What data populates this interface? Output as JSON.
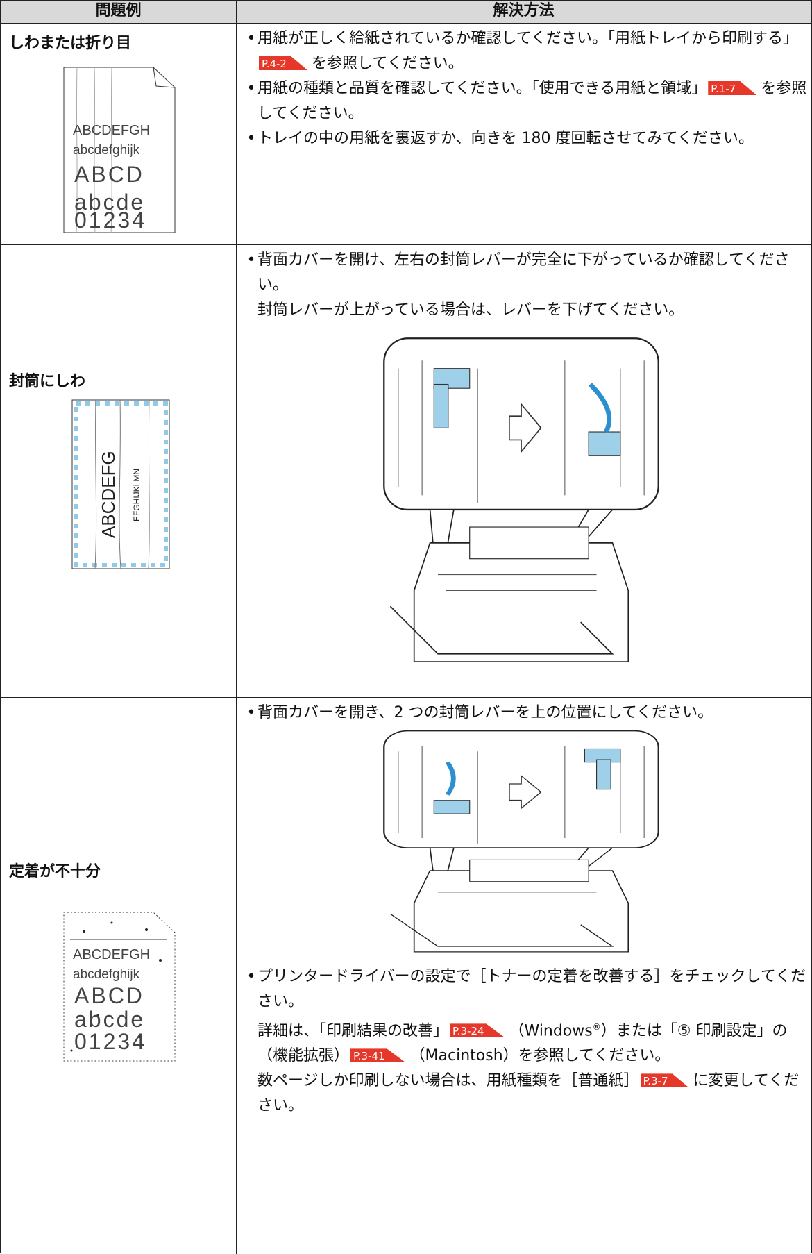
{
  "header": {
    "problem": "問題例",
    "solution": "解決方法"
  },
  "rows": [
    {
      "problem": "しわまたは折り目",
      "sample": [
        "ABCDEFGH",
        "abcdefghijk",
        "ABCD",
        "abcde",
        "01234"
      ],
      "above_figure": [
        {
          "bullet": [
            "用紙が正しく給紙されているか確認してください。「用紙トレイから印刷する」",
            {
              "ref": "P.4-2"
            },
            "を参照してください。"
          ]
        },
        {
          "bullet": [
            "用紙の種類と品質を確認してください。「使用できる用紙と領域」",
            {
              "ref": "P.1-7"
            },
            "を参照してください。"
          ]
        },
        {
          "bullet": [
            "トレイの中の用紙を裏返すか、向きを 180 度回転させてみてください。"
          ]
        }
      ],
      "below_figure": []
    },
    {
      "problem": "封筒にしわ",
      "sample": [
        "ABCDEFG",
        "EFGHIJKLMN"
      ],
      "above_figure": [
        {
          "bullet": [
            "背面カバーを開け、左右の封筒レバーが完全に下がっているか確認してください。"
          ]
        },
        {
          "note": [
            "封筒レバーが上がっている場合は、レバーを下げてください。"
          ]
        }
      ],
      "below_figure": []
    },
    {
      "problem": "定着が不十分",
      "sample": [
        "ABCDEFGH",
        "abcdefghijk",
        "ABCD",
        "abcde",
        "01234"
      ],
      "above_figure": [
        {
          "bullet": [
            "背面カバーを開き、2 つの封筒レバーを上の位置にしてください。"
          ]
        }
      ],
      "below_figure": [
        {
          "bullet": [
            "プリンタードライバーの設定で［トナーの定着を改善する］をチェックしてください。"
          ]
        },
        {
          "note": [
            "詳細は、「印刷結果の改善」",
            {
              "ref": "P.3-24"
            },
            "（Windows",
            {
              "sup": "®"
            },
            "）または「⑤ 印刷設定」の（機能拡張）",
            {
              "ref": "P.3-41"
            },
            "（Macintosh）を参照してください。"
          ]
        },
        {
          "note": [
            "数ページしか印刷しない場合は、用紙種類を［普通紙］",
            {
              "ref": "P.3-7"
            },
            "に変更してください。"
          ]
        }
      ]
    }
  ]
}
